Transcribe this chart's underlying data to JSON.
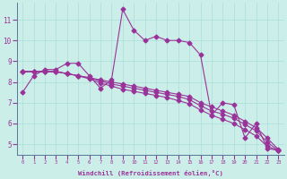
{
  "xlabel": "Windchill (Refroidissement éolien,°C)",
  "background_color": "#cceee8",
  "grid_color": "#aaddda",
  "line_color": "#993399",
  "x_hours": [
    0,
    1,
    2,
    3,
    4,
    5,
    6,
    7,
    8,
    9,
    10,
    11,
    12,
    13,
    14,
    15,
    16,
    17,
    18,
    19,
    20,
    21,
    22,
    23
  ],
  "series_jagged": [
    7.5,
    8.3,
    8.6,
    8.6,
    8.9,
    8.9,
    8.3,
    7.7,
    8.1,
    11.5,
    10.5,
    10.0,
    10.2,
    10.0,
    10.0,
    9.9,
    9.3,
    6.4,
    7.0,
    6.9,
    5.3,
    6.0,
    4.8,
    4.7
  ],
  "series_line1": [
    8.5,
    8.5,
    8.5,
    8.5,
    8.4,
    8.3,
    8.2,
    8.1,
    8.0,
    7.9,
    7.8,
    7.7,
    7.6,
    7.5,
    7.4,
    7.3,
    7.0,
    6.8,
    6.6,
    6.4,
    6.1,
    5.8,
    5.3,
    4.75
  ],
  "series_line2": [
    8.5,
    8.5,
    8.5,
    8.5,
    8.4,
    8.3,
    8.2,
    8.05,
    7.9,
    7.8,
    7.7,
    7.6,
    7.5,
    7.4,
    7.3,
    7.15,
    6.85,
    6.6,
    6.45,
    6.25,
    5.95,
    5.65,
    5.1,
    4.7
  ],
  "series_line3": [
    8.5,
    8.5,
    8.5,
    8.5,
    8.4,
    8.3,
    8.15,
    7.95,
    7.8,
    7.65,
    7.55,
    7.45,
    7.35,
    7.25,
    7.1,
    6.95,
    6.65,
    6.4,
    6.2,
    6.0,
    5.7,
    5.4,
    4.9,
    4.7
  ],
  "ylim_min": 4.5,
  "ylim_max": 11.8,
  "yticks": [
    5,
    6,
    7,
    8,
    9,
    10,
    11
  ],
  "xticks": [
    0,
    1,
    2,
    3,
    4,
    5,
    6,
    7,
    8,
    9,
    10,
    11,
    12,
    13,
    14,
    15,
    16,
    17,
    18,
    19,
    20,
    21,
    22,
    23
  ],
  "marker_size": 2.5,
  "line_width": 0.8
}
